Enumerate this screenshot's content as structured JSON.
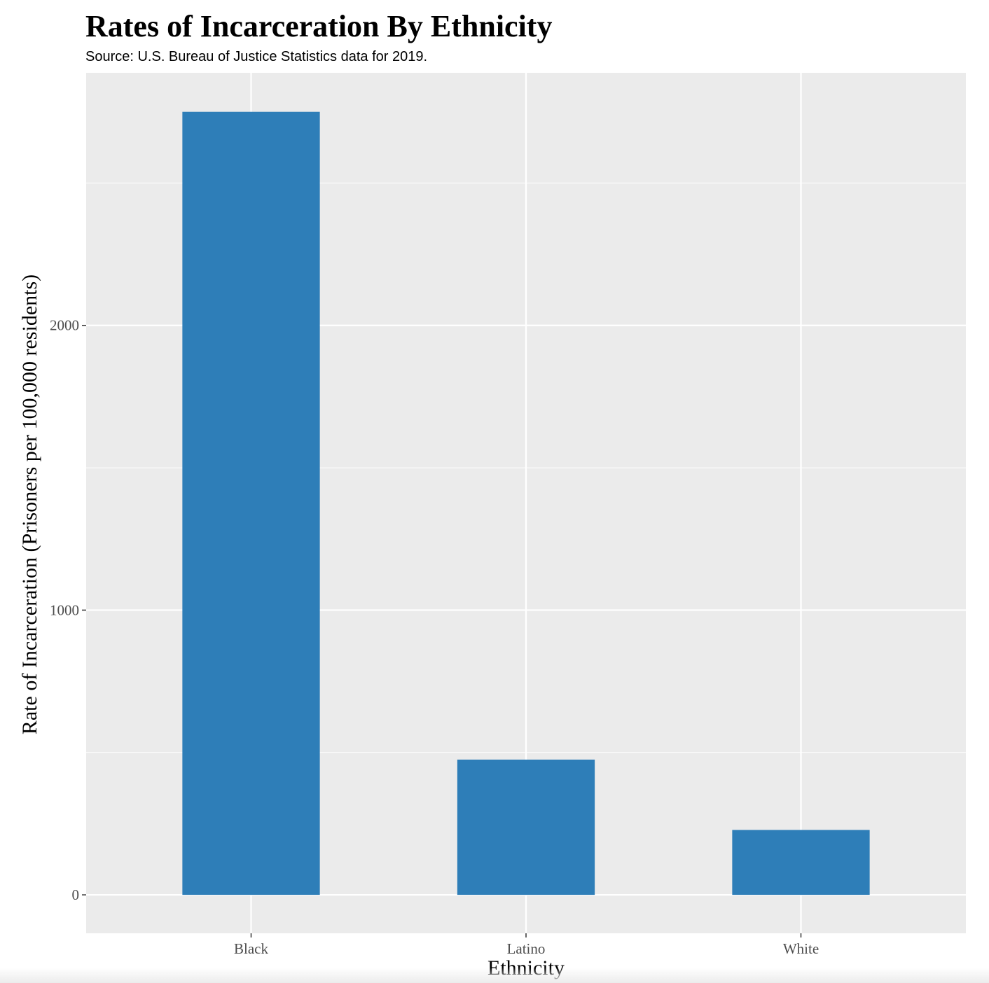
{
  "chart_data": {
    "type": "bar",
    "title": "Rates of Incarceration By Ethnicity",
    "subtitle": "Source: U.S. Bureau of Justice Statistics data for 2019.",
    "xlabel": "Ethnicity",
    "ylabel": "Rate of Incarceration (Prisoners per 100,000 residents)",
    "categories": [
      "Black",
      "Latino",
      "White"
    ],
    "values": [
      2750,
      475,
      228
    ],
    "ylim": [
      -135,
      2887
    ],
    "yticks": [
      0,
      1000,
      2000
    ],
    "ytick_labels": [
      "0",
      "1000",
      "2000"
    ],
    "grid": true,
    "colors": {
      "bar": "#2E7EB8",
      "panel": "#EBEBEB",
      "grid": "#FFFFFF",
      "tick": "#333333"
    }
  }
}
